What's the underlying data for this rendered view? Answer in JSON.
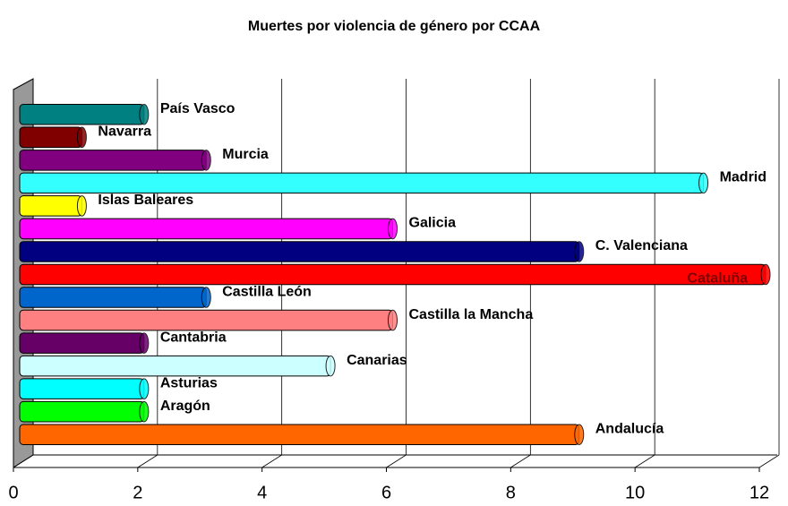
{
  "chart_data": {
    "type": "bar",
    "orientation": "horizontal",
    "title": "Muertes por violencia de género por CCAA",
    "categories": [
      "Andalucía",
      "Aragón",
      "Asturias",
      "Canarias",
      "Cantabria",
      "Castilla la Mancha",
      "Castilla León",
      "Cataluña",
      "C. Valenciana",
      "Galicia",
      "Islas Baleares",
      "Madrid",
      "Murcia",
      "Navarra",
      "País Vasco"
    ],
    "values": [
      9,
      2,
      2,
      5,
      2,
      6,
      3,
      12,
      9,
      6,
      1,
      11,
      3,
      1,
      2
    ],
    "colors": [
      "#ff6600",
      "#00ff00",
      "#00ffff",
      "#ccffff",
      "#660066",
      "#ff8080",
      "#0066cc",
      "#ff0000",
      "#000080",
      "#ff00ff",
      "#ffff00",
      "#33ffff",
      "#800080",
      "#800000",
      "#008080"
    ],
    "xlim": [
      0,
      12
    ],
    "xticks": [
      0,
      2,
      4,
      6,
      8,
      10,
      12
    ],
    "grid": true
  }
}
